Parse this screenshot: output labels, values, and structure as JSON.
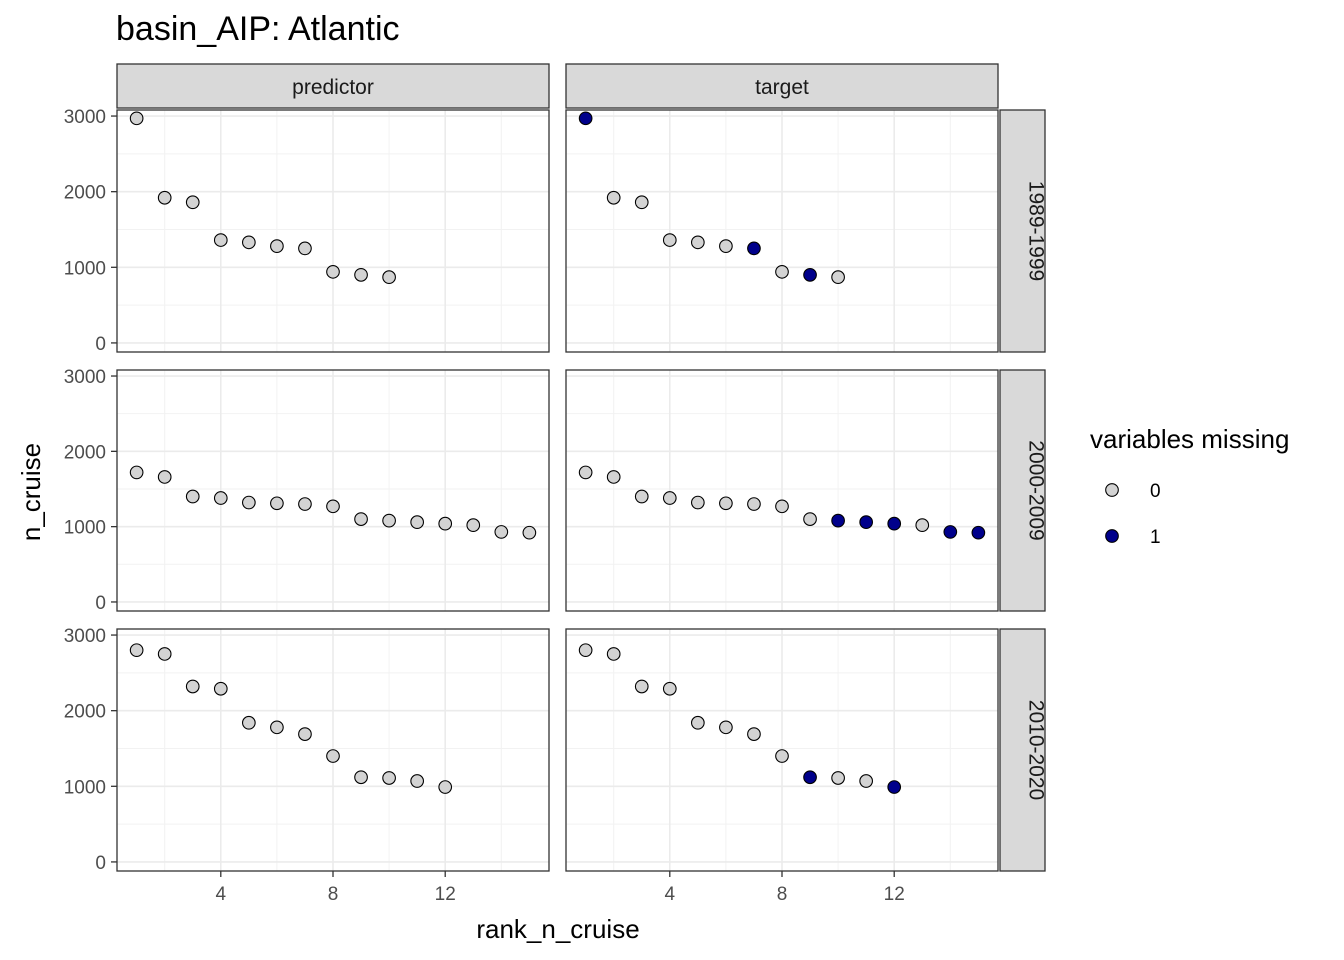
{
  "chart_data": {
    "type": "scatter",
    "title": "basin_AIP: Atlantic",
    "xlabel": "rank_n_cruise",
    "ylabel": "n_cruise",
    "xlim": [
      0.3,
      15.7
    ],
    "ylim": [
      -120,
      3080
    ],
    "x_ticks": [
      4,
      8,
      12
    ],
    "y_ticks": [
      0,
      1000,
      2000,
      3000
    ],
    "grid": true,
    "column_facets": [
      "predictor",
      "target"
    ],
    "row_facets": [
      "1989-1999",
      "2000-2009",
      "2010-2020"
    ],
    "legend": {
      "title": "variables missing",
      "position": "right",
      "entries": [
        {
          "label": "0",
          "color": "#d3d3d3"
        },
        {
          "label": "1",
          "color": "#00008b"
        }
      ]
    },
    "panels": [
      {
        "row": "1989-1999",
        "col": "predictor",
        "points": [
          [
            1,
            2970,
            0
          ],
          [
            2,
            1920,
            0
          ],
          [
            3,
            1860,
            0
          ],
          [
            4,
            1360,
            0
          ],
          [
            5,
            1330,
            0
          ],
          [
            6,
            1280,
            0
          ],
          [
            7,
            1250,
            0
          ],
          [
            8,
            940,
            0
          ],
          [
            9,
            900,
            0
          ],
          [
            10,
            870,
            0
          ]
        ]
      },
      {
        "row": "1989-1999",
        "col": "target",
        "points": [
          [
            1,
            2970,
            1
          ],
          [
            2,
            1920,
            0
          ],
          [
            3,
            1860,
            0
          ],
          [
            4,
            1360,
            0
          ],
          [
            5,
            1330,
            0
          ],
          [
            6,
            1280,
            0
          ],
          [
            7,
            1250,
            1
          ],
          [
            8,
            940,
            0
          ],
          [
            9,
            900,
            1
          ],
          [
            10,
            870,
            0
          ]
        ]
      },
      {
        "row": "2000-2009",
        "col": "predictor",
        "points": [
          [
            1,
            1720,
            0
          ],
          [
            2,
            1660,
            0
          ],
          [
            3,
            1400,
            0
          ],
          [
            4,
            1380,
            0
          ],
          [
            5,
            1320,
            0
          ],
          [
            6,
            1310,
            0
          ],
          [
            7,
            1300,
            0
          ],
          [
            8,
            1270,
            0
          ],
          [
            9,
            1100,
            0
          ],
          [
            10,
            1080,
            0
          ],
          [
            11,
            1060,
            0
          ],
          [
            12,
            1040,
            0
          ],
          [
            13,
            1020,
            0
          ],
          [
            14,
            930,
            0
          ],
          [
            15,
            920,
            0
          ]
        ]
      },
      {
        "row": "2000-2009",
        "col": "target",
        "points": [
          [
            1,
            1720,
            0
          ],
          [
            2,
            1660,
            0
          ],
          [
            3,
            1400,
            0
          ],
          [
            4,
            1380,
            0
          ],
          [
            5,
            1320,
            0
          ],
          [
            6,
            1310,
            0
          ],
          [
            7,
            1300,
            0
          ],
          [
            8,
            1270,
            0
          ],
          [
            9,
            1100,
            0
          ],
          [
            10,
            1080,
            1
          ],
          [
            11,
            1060,
            1
          ],
          [
            12,
            1040,
            1
          ],
          [
            13,
            1020,
            0
          ],
          [
            14,
            930,
            1
          ],
          [
            15,
            920,
            1
          ]
        ]
      },
      {
        "row": "2010-2020",
        "col": "predictor",
        "points": [
          [
            1,
            2800,
            0
          ],
          [
            2,
            2750,
            0
          ],
          [
            3,
            2320,
            0
          ],
          [
            4,
            2290,
            0
          ],
          [
            5,
            1840,
            0
          ],
          [
            6,
            1780,
            0
          ],
          [
            7,
            1690,
            0
          ],
          [
            8,
            1400,
            0
          ],
          [
            9,
            1120,
            0
          ],
          [
            10,
            1110,
            0
          ],
          [
            11,
            1070,
            0
          ],
          [
            12,
            990,
            0
          ]
        ]
      },
      {
        "row": "2010-2020",
        "col": "target",
        "points": [
          [
            1,
            2800,
            0
          ],
          [
            2,
            2750,
            0
          ],
          [
            3,
            2320,
            0
          ],
          [
            4,
            2290,
            0
          ],
          [
            5,
            1840,
            0
          ],
          [
            6,
            1780,
            0
          ],
          [
            7,
            1690,
            0
          ],
          [
            8,
            1400,
            0
          ],
          [
            9,
            1120,
            1
          ],
          [
            10,
            1110,
            0
          ],
          [
            11,
            1070,
            0
          ],
          [
            12,
            990,
            1
          ]
        ]
      }
    ]
  }
}
